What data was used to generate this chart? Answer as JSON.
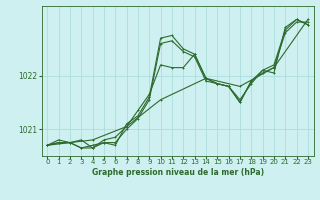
{
  "title": "Graphe pression niveau de la mer (hPa)",
  "bg_color": "#cff0f0",
  "grid_color": "#aadddd",
  "line_color": "#2d6a2d",
  "xlim": [
    -0.5,
    23.5
  ],
  "ylim": [
    1020.5,
    1023.3
  ],
  "yticks": [
    1021,
    1022
  ],
  "xticks": [
    0,
    1,
    2,
    3,
    4,
    5,
    6,
    7,
    8,
    9,
    10,
    11,
    12,
    13,
    14,
    15,
    16,
    17,
    18,
    19,
    20,
    21,
    22,
    23
  ],
  "series1": [
    [
      0,
      1020.7
    ],
    [
      1,
      1020.75
    ],
    [
      2,
      1020.75
    ],
    [
      3,
      1020.65
    ],
    [
      4,
      1020.65
    ],
    [
      5,
      1020.75
    ],
    [
      6,
      1020.7
    ],
    [
      7,
      1021.1
    ],
    [
      8,
      1021.25
    ],
    [
      9,
      1021.6
    ],
    [
      10,
      1022.7
    ],
    [
      11,
      1022.75
    ],
    [
      12,
      1022.5
    ],
    [
      13,
      1022.4
    ],
    [
      14,
      1021.95
    ],
    [
      15,
      1021.85
    ],
    [
      16,
      1021.8
    ],
    [
      17,
      1021.55
    ],
    [
      18,
      1021.85
    ],
    [
      19,
      1022.1
    ],
    [
      20,
      1022.2
    ],
    [
      21,
      1022.85
    ],
    [
      22,
      1023.05
    ],
    [
      23,
      1022.95
    ]
  ],
  "series2": [
    [
      0,
      1020.7
    ],
    [
      1,
      1020.8
    ],
    [
      2,
      1020.75
    ],
    [
      3,
      1020.8
    ],
    [
      4,
      1020.65
    ],
    [
      5,
      1020.8
    ],
    [
      6,
      1020.85
    ],
    [
      7,
      1021.05
    ],
    [
      8,
      1021.35
    ],
    [
      9,
      1021.65
    ],
    [
      10,
      1022.2
    ],
    [
      11,
      1022.15
    ],
    [
      12,
      1022.15
    ],
    [
      13,
      1022.4
    ],
    [
      14,
      1021.95
    ],
    [
      15,
      1021.85
    ],
    [
      16,
      1021.8
    ],
    [
      17,
      1021.5
    ],
    [
      18,
      1021.9
    ],
    [
      19,
      1022.1
    ],
    [
      20,
      1022.05
    ],
    [
      21,
      1022.9
    ],
    [
      22,
      1023.05
    ],
    [
      23,
      1022.95
    ]
  ],
  "series3": [
    [
      0,
      1020.7
    ],
    [
      1,
      1020.75
    ],
    [
      2,
      1020.75
    ],
    [
      3,
      1020.65
    ],
    [
      4,
      1020.7
    ],
    [
      5,
      1020.75
    ],
    [
      6,
      1020.75
    ],
    [
      7,
      1021.0
    ],
    [
      8,
      1021.2
    ],
    [
      9,
      1021.55
    ],
    [
      10,
      1022.6
    ],
    [
      11,
      1022.65
    ],
    [
      12,
      1022.45
    ],
    [
      13,
      1022.35
    ],
    [
      14,
      1021.9
    ],
    [
      15,
      1021.85
    ],
    [
      16,
      1021.8
    ],
    [
      17,
      1021.5
    ],
    [
      18,
      1021.9
    ],
    [
      19,
      1022.05
    ],
    [
      20,
      1022.15
    ],
    [
      21,
      1022.8
    ],
    [
      22,
      1023.0
    ],
    [
      23,
      1023.0
    ]
  ],
  "series4": [
    [
      0,
      1020.7
    ],
    [
      4,
      1020.8
    ],
    [
      7,
      1021.05
    ],
    [
      10,
      1021.55
    ],
    [
      14,
      1021.95
    ],
    [
      17,
      1021.8
    ],
    [
      20,
      1022.15
    ],
    [
      23,
      1023.05
    ]
  ]
}
